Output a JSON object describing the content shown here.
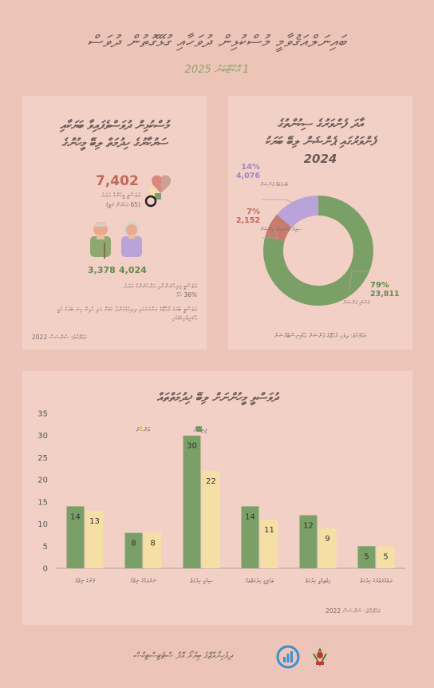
{
  "header": {
    "title": "ބައިނަލްއަޤުވާމީ މުސްކުޅިން ދުވަހާއި ގުޅޭގޮތުން ދުވަސް",
    "date": "1 އޮކްޓޫބަރު 2025"
  },
  "elderly_panel": {
    "title_line1": "މުސްކުޅިން ދުވަސްވެފައިވާ ބަޔަކާއި",
    "title_line2": "ސަރުކާރުގެ ހިދުމަތް ލިބޭ މީހުންގެ",
    "total": "7,402",
    "total_caption": "ދުވަސްވީ މީހުންގެ ޢަދަދު",
    "total_sub": "(65 އަހަރުން މަތީ)",
    "male_value": "3,378",
    "female_value": "4,024",
    "note1": "ދުވަސްވީ ފިރިހެނުންނާއި އަންހެނުންގެ ޢަދަދު",
    "note_pct": "36% އެއް",
    "note2": "ދުވަސްވީ ބަޔަކު ރާއްޖޭގެ ރަށްރަށުގައި ދިރިއުޅެމުންދާ ކަމަށް އަދި އެއިން ގިނަ ބަޔަކު ހުރީ އެކަނިވެރިކަމުގައި",
    "source": "މަޢުލޫމާތު: ސެންސަސް 2022"
  },
  "donut_panel": {
    "title_line1": "އާދަ ފެންވަރުގެ ސިކުންތުގެ",
    "title_line2": "ފެންވަރުގައި ޕެންޝަން ލިބޭ ބަޔަކު",
    "title_year": "2024",
    "source": "މަޢުލޫމާތު: ދިވެހި ރާއްޖޭގެ ޕެންޝަން އެޑްމިނިސްޓްރޭޝަން"
  },
  "bar_panel": {
    "title": "ދުވަސްވީ މީހުންނަށް ލިބޭ ޚިދުމަތްތައް",
    "source": "މަޢުލޫމާތު: ސެންސަސް 2022"
  },
  "footer": {
    "org": "ދިވެހިރާއްޖޭގެ ބިޔުރޯ އޮފް ސްޓެޓިސްޓިކްސް"
  },
  "colors": {
    "background": "#ecc5b8",
    "panel": "#f3d0c6",
    "green": "#7ba067",
    "beige": "#f6dfa4",
    "red": "#c57d6e",
    "purple": "#b9a3d8",
    "title": "#6b5a55"
  },
  "chart_data": [
    {
      "type": "pie",
      "title": "",
      "slices": [
        {
          "name": "މުސްކުޅި ޕެންޝަން",
          "value": 23811,
          "pct": "79%",
          "label": "23,811",
          "color": "#7ba067"
        },
        {
          "name": "ސިވިލް ސަރވިސް ޕެންޝަން",
          "value": 2152,
          "pct": "7%",
          "label": "2,152",
          "color": "#c57d6e"
        },
        {
          "name": "ޓާރގެޓެޑް ޕެންޝަން",
          "value": 4076,
          "pct": "14%",
          "label": "4,076",
          "color": "#b9a3d8"
        }
      ],
      "donut": true
    },
    {
      "type": "bar",
      "title": "",
      "categories": [
        "ފެނުގެ ނިޒާމް",
        "ނަރުދަމާގެ ނިޒާމް",
        "ޞިއްޙީ ޚިދުމަތް",
        "ތަޢުލީމީ ޚިދުމަތްތައް",
        "އިޖުތިމާޢީ ޚިދުމަތް",
        "ދަތުރުފަތުރުގެ ޚިދުމަތް"
      ],
      "series": [
        {
          "name": "ފިރިހެން",
          "values": [
            14,
            8,
            30,
            14,
            12,
            5
          ],
          "color": "#7ba067"
        },
        {
          "name": "އަންހެން",
          "values": [
            13,
            8,
            22,
            11,
            9,
            5
          ],
          "color": "#f6dfa4"
        }
      ],
      "ylim": [
        0,
        35
      ],
      "yticks": [
        0,
        5,
        10,
        15,
        20,
        25,
        30,
        35
      ],
      "grid": false,
      "legend": "top-left"
    }
  ]
}
